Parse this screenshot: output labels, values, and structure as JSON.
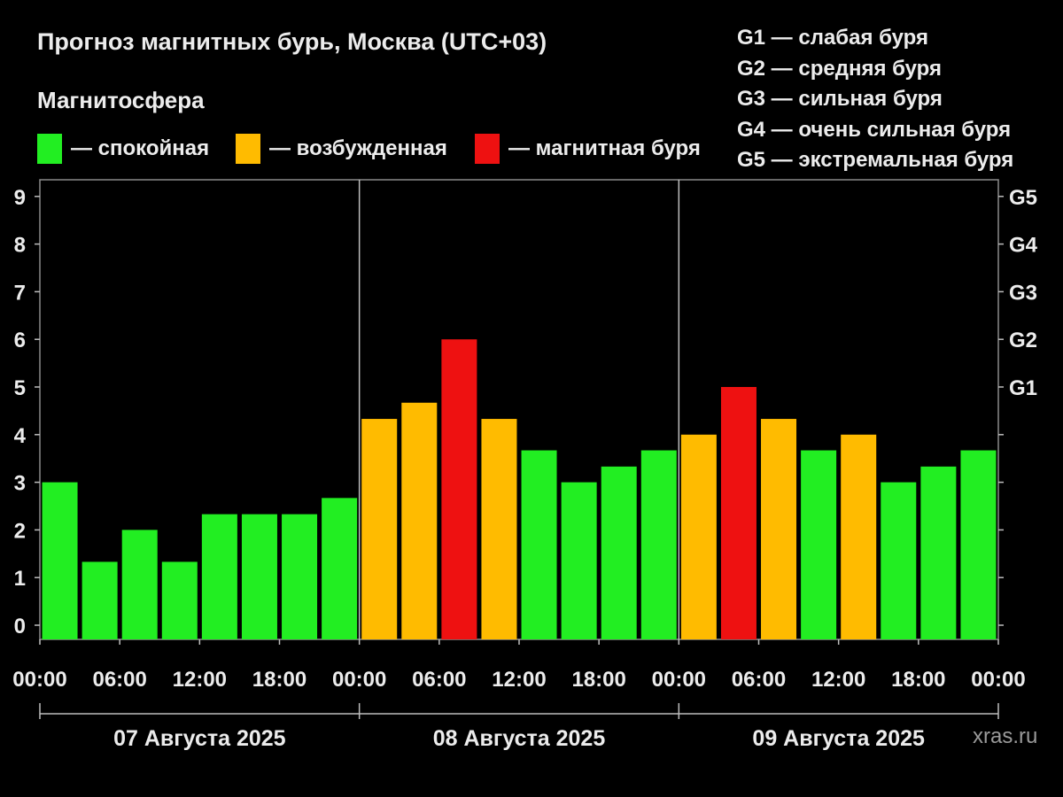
{
  "header": {
    "title": "Прогноз магнитных бурь, Москва (UTC+03)",
    "subtitle": "Магнитосфера"
  },
  "legend": [
    {
      "label": "— спокойная",
      "color": "#22ee22"
    },
    {
      "label": "— возбужденная",
      "color": "#ffbb00"
    },
    {
      "label": "— магнитная буря",
      "color": "#ee1111"
    }
  ],
  "g_legend": [
    "G1 — слабая буря",
    "G2 — средняя буря",
    "G3 — сильная буря",
    "G4 — очень сильная буря",
    "G5 — экстремальная буря"
  ],
  "watermark": "xras.ru",
  "chart_data": {
    "type": "bar",
    "ylim": [
      0,
      9
    ],
    "y_ticks": [
      "0",
      "1",
      "2",
      "3",
      "4",
      "5",
      "6",
      "7",
      "8",
      "9"
    ],
    "right_ticks": [
      {
        "value": 5,
        "label": "G1"
      },
      {
        "value": 6,
        "label": "G2"
      },
      {
        "value": 7,
        "label": "G3"
      },
      {
        "value": 8,
        "label": "G4"
      },
      {
        "value": 9,
        "label": "G5"
      }
    ],
    "x_tick_labels": [
      "00:00",
      "06:00",
      "12:00",
      "18:00",
      "00:00",
      "06:00",
      "12:00",
      "18:00",
      "00:00",
      "06:00",
      "12:00",
      "18:00",
      "00:00"
    ],
    "days": [
      "07 Августа 2025",
      "08 Августа 2025",
      "09 Августа 2025"
    ],
    "colors": {
      "calm": "#22ee22",
      "excited": "#ffbb00",
      "storm": "#ee1111"
    },
    "values": [
      3.0,
      1.33,
      2.0,
      1.33,
      2.33,
      2.33,
      2.33,
      2.67,
      4.33,
      4.67,
      6.0,
      4.33,
      3.67,
      3.0,
      3.33,
      3.67,
      4.0,
      5.0,
      4.33,
      3.67,
      4.0,
      3.0,
      3.33,
      3.67
    ],
    "levels": [
      "calm",
      "calm",
      "calm",
      "calm",
      "calm",
      "calm",
      "calm",
      "calm",
      "excited",
      "excited",
      "storm",
      "excited",
      "calm",
      "calm",
      "calm",
      "calm",
      "excited",
      "storm",
      "excited",
      "calm",
      "excited",
      "calm",
      "calm",
      "calm"
    ]
  }
}
